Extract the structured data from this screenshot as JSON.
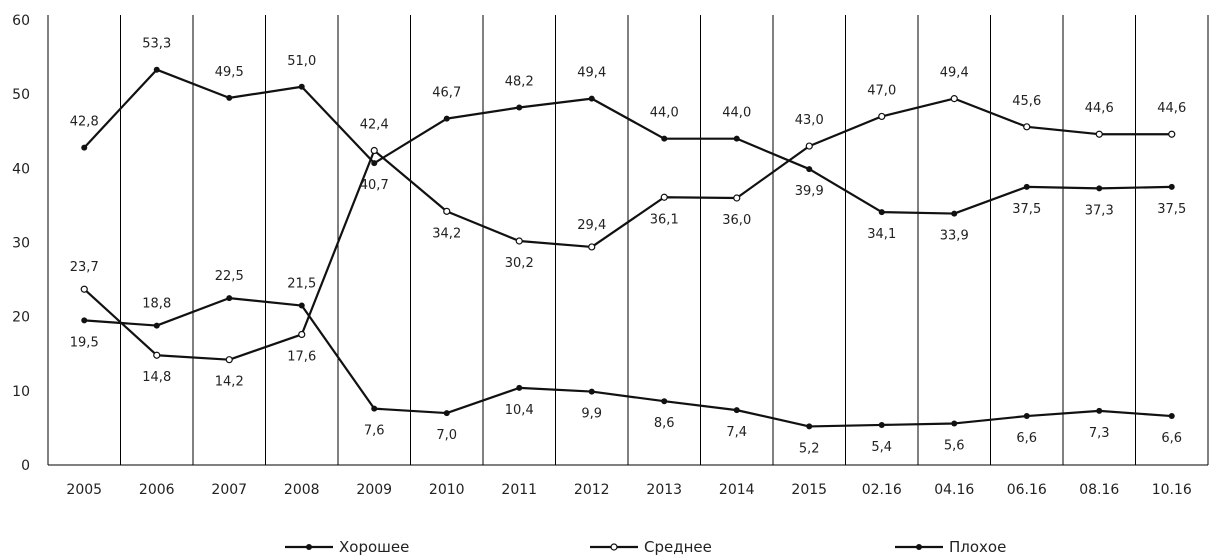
{
  "chart_data": {
    "type": "line",
    "title": "",
    "xlabel": "",
    "ylabel": "",
    "ylim": [
      0,
      60
    ],
    "yticks": [
      0,
      10,
      20,
      30,
      40,
      50,
      60
    ],
    "grid": "vertical",
    "legend_position": "bottom",
    "categories": [
      "2005",
      "2006",
      "2007",
      "2008",
      "2009",
      "2010",
      "2011",
      "2012",
      "2013",
      "2014",
      "2015",
      "02.16",
      "04.16",
      "06.16",
      "08.16",
      "10.16"
    ],
    "series": [
      {
        "name": "Хорошее",
        "marker": "filled",
        "color": "#111111",
        "values": [
          19.5,
          18.8,
          22.5,
          21.5,
          7.6,
          7.0,
          10.4,
          9.9,
          8.6,
          7.4,
          5.2,
          5.4,
          5.6,
          6.6,
          7.3,
          6.6
        ],
        "labels": [
          "19,5",
          "18,8",
          "22,5",
          "21,5",
          "7,6",
          "7,0",
          "10,4",
          "9,9",
          "8,6",
          "7,4",
          "5,2",
          "5,4",
          "5,6",
          "6,6",
          "7,3",
          "6,6"
        ]
      },
      {
        "name": "Среднее",
        "marker": "open",
        "color": "#111111",
        "values": [
          23.7,
          14.8,
          14.2,
          17.6,
          42.4,
          34.2,
          30.2,
          29.4,
          36.1,
          36.0,
          43.0,
          47.0,
          49.4,
          45.6,
          44.6,
          44.6
        ],
        "labels": [
          "23,7",
          "14,8",
          "14,2",
          "17,6",
          "42,4",
          "34,2",
          "30,2",
          "29,4",
          "36,1",
          "36,0",
          "43,0",
          "47,0",
          "49,4",
          "45,6",
          "44,6",
          "44,6"
        ]
      },
      {
        "name": "Плохое",
        "marker": "filled",
        "color": "#111111",
        "values": [
          42.8,
          53.3,
          49.5,
          51.0,
          40.7,
          46.7,
          48.2,
          49.4,
          44.0,
          44.0,
          39.9,
          34.1,
          33.9,
          37.5,
          37.3,
          37.5
        ],
        "labels": [
          "42,8",
          "53,3",
          "49,5",
          "51,0",
          "40,7",
          "46,7",
          "48,2",
          "49,4",
          "44,0",
          "44,0",
          "39,9",
          "34,1",
          "33,9",
          "37,5",
          "37,3",
          "37,5"
        ]
      }
    ]
  }
}
